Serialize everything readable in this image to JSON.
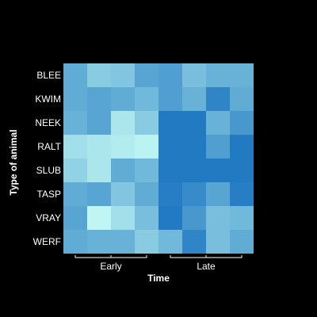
{
  "chart_data": {
    "type": "heatmap",
    "title": "",
    "xlabel": "Time",
    "ylabel": "Type of animal",
    "rows": [
      "BLEE",
      "KWIM",
      "NEEK",
      "RALT",
      "SLUB",
      "TASP",
      "VRAY",
      "WERF"
    ],
    "column_groups": [
      {
        "label": "Early",
        "columns": 4
      },
      {
        "label": "Late",
        "columns": 4
      }
    ],
    "colorscale": [
      "#c2f9f4",
      "#1f78c1"
    ],
    "values": [
      [
        0.6,
        0.35,
        0.4,
        0.65,
        0.7,
        0.45,
        0.55,
        0.55
      ],
      [
        0.6,
        0.65,
        0.6,
        0.5,
        0.7,
        0.55,
        0.9,
        0.6
      ],
      [
        0.55,
        0.65,
        0.15,
        0.35,
        0.98,
        0.98,
        0.55,
        0.75
      ],
      [
        0.2,
        0.15,
        0.1,
        0.05,
        0.98,
        0.98,
        0.7,
        0.98
      ],
      [
        0.3,
        0.15,
        0.6,
        0.5,
        0.98,
        0.98,
        0.98,
        0.98
      ],
      [
        0.6,
        0.65,
        0.4,
        0.6,
        0.95,
        0.85,
        0.65,
        0.95
      ],
      [
        0.65,
        0.02,
        0.2,
        0.45,
        0.98,
        0.75,
        0.45,
        0.5
      ],
      [
        0.6,
        0.55,
        0.55,
        0.35,
        0.5,
        0.9,
        0.45,
        0.6
      ]
    ],
    "grid": false,
    "legend": "none"
  }
}
